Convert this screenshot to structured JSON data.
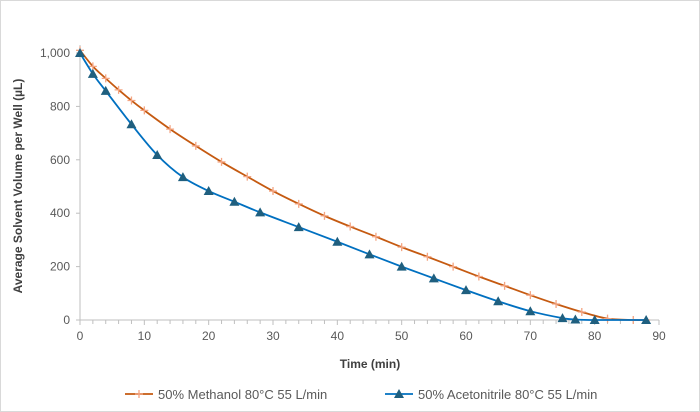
{
  "chart_data": {
    "type": "line",
    "title": "",
    "xlabel": "Time (min)",
    "ylabel": "Average Solvent Volume per Well (µL)",
    "xlim": [
      0,
      90
    ],
    "ylim": [
      0,
      1000
    ],
    "xticks": [
      0,
      10,
      20,
      30,
      40,
      50,
      60,
      70,
      80,
      90
    ],
    "yticks": [
      0,
      200,
      400,
      600,
      800,
      1000
    ],
    "ytick_labels": [
      "0",
      "200",
      "400",
      "600",
      "800",
      "1,000"
    ],
    "grid": false,
    "legend": "bottom",
    "series": [
      {
        "name": "50% Methanol 80°C 55 L/min",
        "color": "#C55A11",
        "marker": "plus",
        "x": [
          0,
          2,
          4,
          6,
          8,
          10,
          14,
          18,
          22,
          26,
          30,
          34,
          38,
          42,
          46,
          50,
          54,
          58,
          62,
          66,
          70,
          74,
          78,
          82,
          86,
          88
        ],
        "y": [
          1010,
          950,
          905,
          862,
          822,
          785,
          715,
          652,
          592,
          537,
          483,
          435,
          390,
          350,
          312,
          273,
          237,
          200,
          163,
          128,
          93,
          60,
          30,
          5,
          0,
          0
        ]
      },
      {
        "name": "50% Acetonitrile 80°C 55 L/min",
        "color": "#0070C0",
        "marker_color": "#1F5F7F",
        "marker": "triangle",
        "x": [
          0,
          2,
          4,
          8,
          12,
          16,
          20,
          24,
          28,
          34,
          40,
          45,
          50,
          55,
          60,
          65,
          70,
          75,
          77,
          80,
          88
        ],
        "y": [
          1000,
          922,
          858,
          733,
          618,
          535,
          483,
          443,
          403,
          348,
          293,
          246,
          200,
          156,
          112,
          70,
          33,
          7,
          2,
          0,
          0
        ]
      }
    ]
  }
}
